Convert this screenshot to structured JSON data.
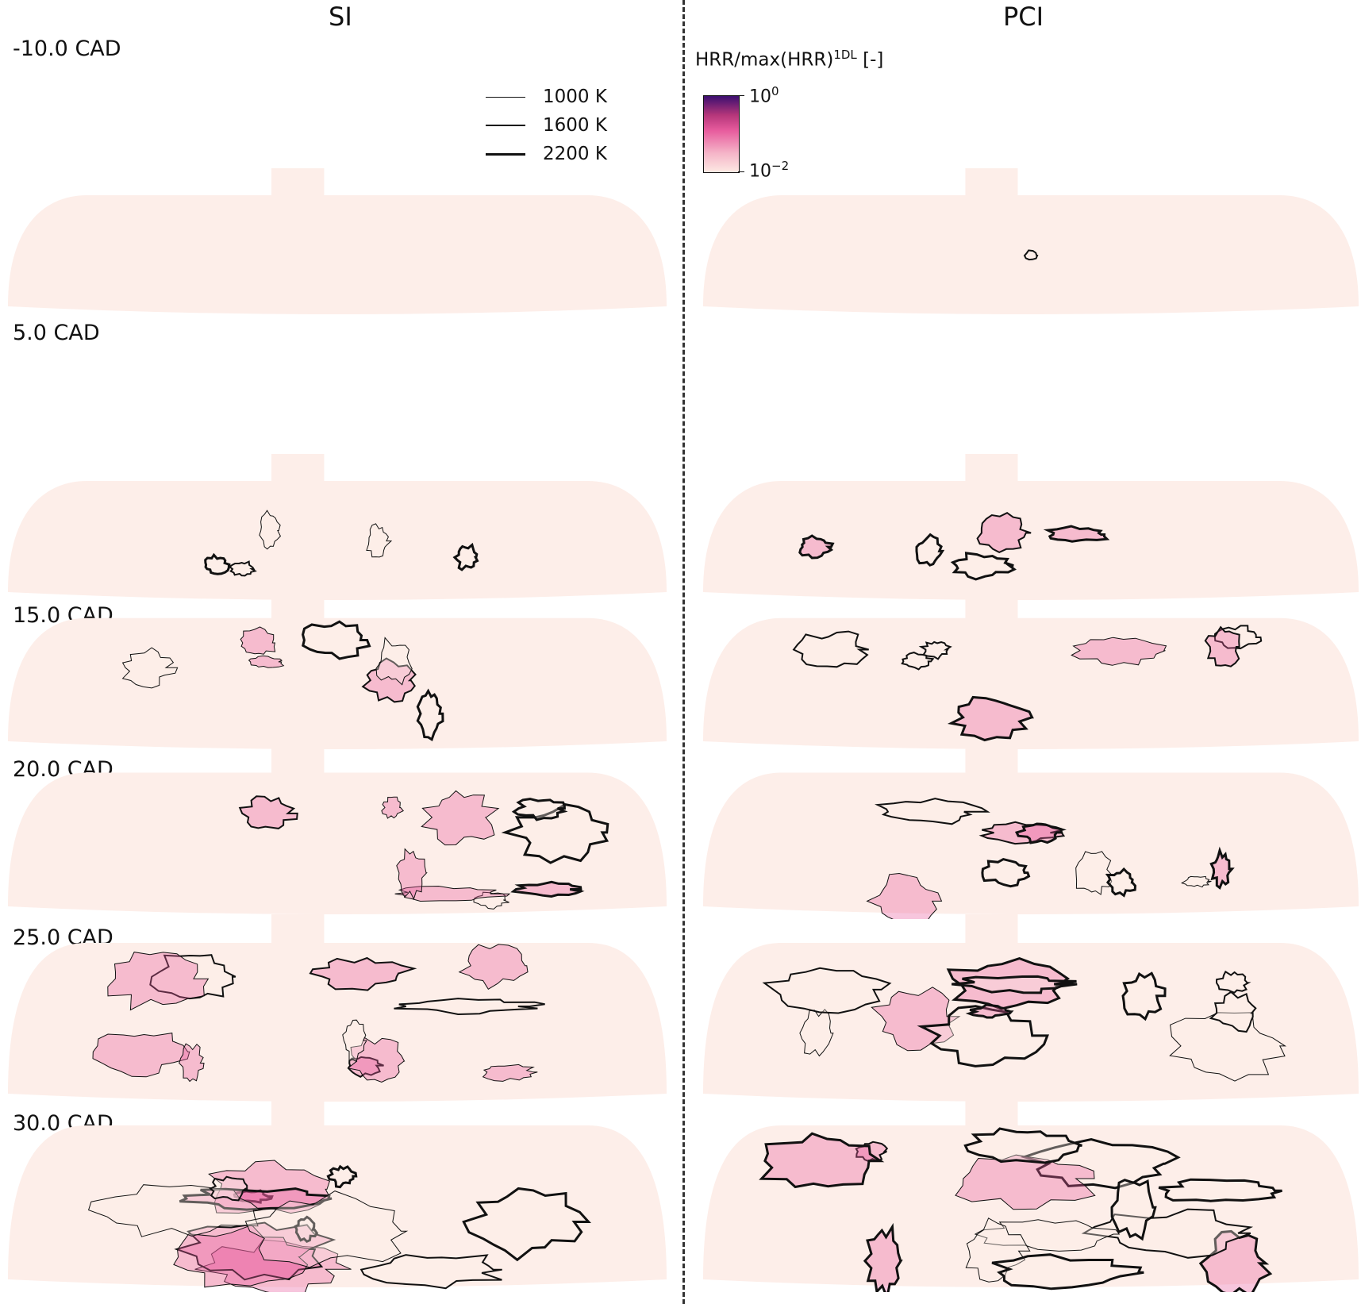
{
  "columns": {
    "left": "SI",
    "right": "PCI"
  },
  "cad_labels": [
    "-10.0 CAD",
    "5.0 CAD",
    "15.0 CAD",
    "20.0 CAD",
    "25.0 CAD",
    "30.0 CAD"
  ],
  "isotherm_legend": [
    {
      "label": "1000 K"
    },
    {
      "label": "1600 K"
    },
    {
      "label": "2200 K"
    }
  ],
  "colorbar": {
    "title_main": "HRR/max(HRR)",
    "title_sup": "1DL",
    "title_unit": " [-]",
    "max_base": "10",
    "max_exp": "0",
    "min_base": "10",
    "min_exp": "−2"
  },
  "colors": {
    "chamber_fill": "#fdeee9",
    "contour": "#111111",
    "hrr_high": "#3b0f70",
    "hrr_mid": "#e75b9d"
  }
}
